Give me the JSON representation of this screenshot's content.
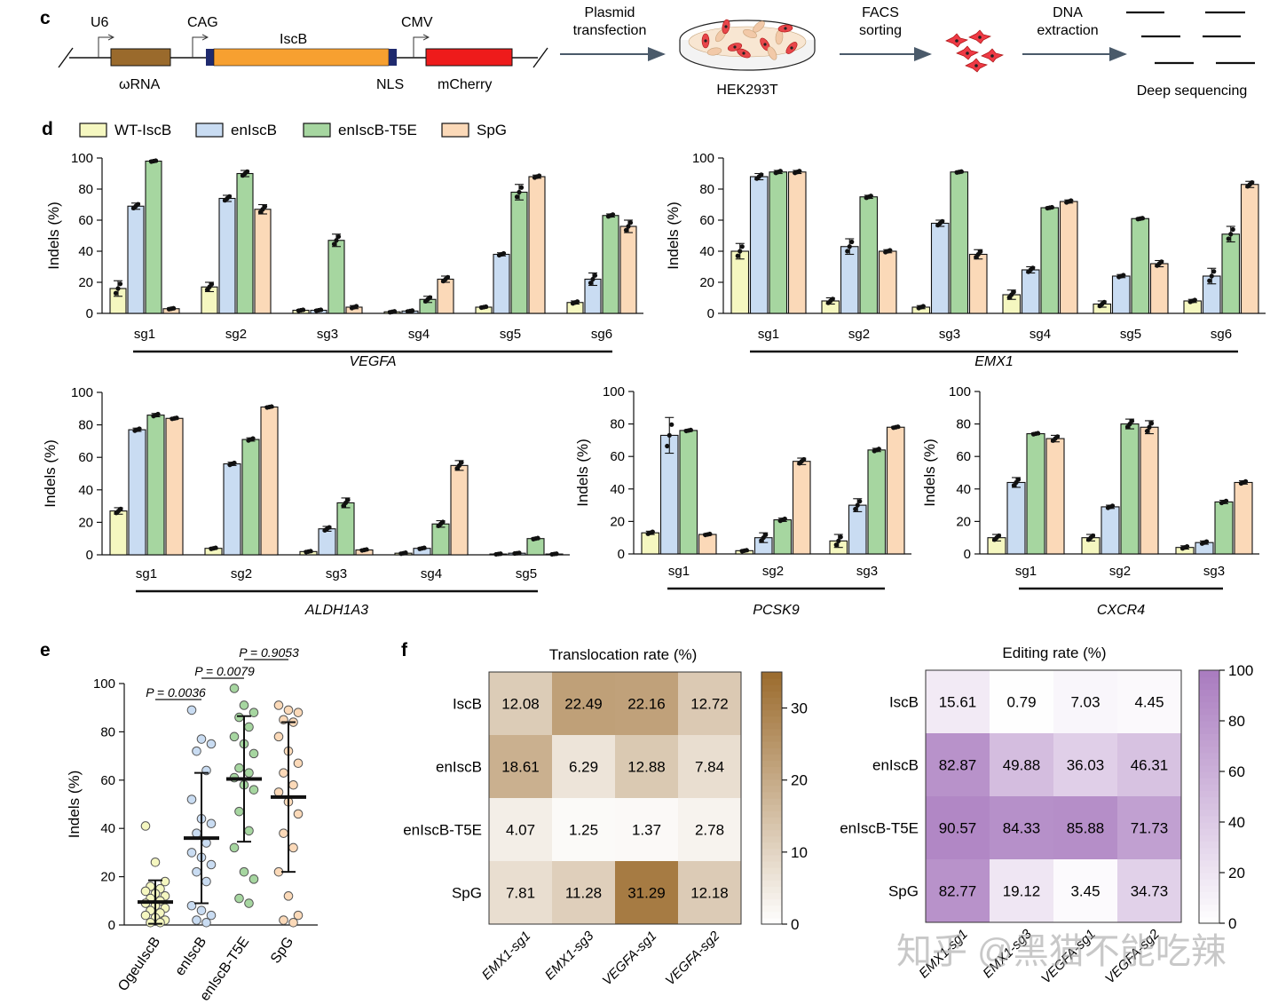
{
  "colors": {
    "wt": "#f5f7c0",
    "en": "#c9dcf2",
    "t5e": "#a6d6a0",
    "spg": "#fbd9b8",
    "bar_stroke": "#111111",
    "plasmid_line": "#111111",
    "omega_box": "#9a6a2c",
    "iscb_box": "#f7a030",
    "nls_box": "#1f2a6e",
    "mcherry_box": "#ee1b1b",
    "arrow": "#4a5a6a",
    "trans_low": "#ffffff",
    "trans_high": "#9b6b2d",
    "edit_low": "#ffffff",
    "edit_high": "#a97bbf"
  },
  "panel_c": {
    "letter": "c",
    "promoters": [
      "U6",
      "CAG",
      "CMV"
    ],
    "labels": {
      "omega": "ωRNA",
      "iscb": "IscB",
      "nls": "NLS",
      "mcherry": "mCherry"
    },
    "steps": [
      {
        "text": [
          "Plasmid",
          "transfection"
        ],
        "icon": "petri-dish-icon",
        "caption": "HEK293T"
      },
      {
        "text": [
          "FACS",
          "sorting"
        ],
        "icon": "sorted-cells-icon",
        "caption": ""
      },
      {
        "text": [
          "DNA",
          "extraction"
        ],
        "icon": "sequencing-reads-icon",
        "caption": "Deep sequencing"
      }
    ]
  },
  "panel_d": {
    "letter": "d",
    "legend": [
      "WT-IscB",
      "enIscB",
      "enIscB-T5E",
      "SpG"
    ]
  },
  "panel_e": {
    "letter": "e"
  },
  "panel_f": {
    "letter": "f"
  },
  "chart_data": [
    {
      "type": "bar",
      "id": "VEGFA",
      "gene": "VEGFA",
      "ylabel": "Indels (%)",
      "ylim": [
        0,
        100
      ],
      "yticks": [
        0,
        20,
        40,
        60,
        80,
        100
      ],
      "categories": [
        "sg1",
        "sg2",
        "sg3",
        "sg4",
        "sg5",
        "sg6"
      ],
      "series": [
        {
          "name": "WT-IscB",
          "values": [
            16,
            17,
            2,
            1,
            4,
            7
          ],
          "err": [
            5,
            3,
            0.5,
            0.5,
            0.5,
            1
          ]
        },
        {
          "name": "enIscB",
          "values": [
            69,
            74,
            2,
            1.5,
            38,
            22
          ],
          "err": [
            2,
            2,
            0.5,
            0.5,
            1,
            4
          ]
        },
        {
          "name": "enIscB-T5E",
          "values": [
            98,
            90,
            47,
            9,
            78,
            63
          ],
          "err": [
            0.5,
            2,
            4,
            2,
            5,
            1
          ]
        },
        {
          "name": "SpG",
          "values": [
            3,
            67,
            4,
            22,
            88,
            56
          ],
          "err": [
            0.5,
            3,
            1,
            2,
            1,
            4
          ]
        }
      ]
    },
    {
      "type": "bar",
      "id": "EMX1",
      "gene": "EMX1",
      "ylabel": "Indels (%)",
      "ylim": [
        0,
        100
      ],
      "yticks": [
        0,
        20,
        40,
        60,
        80,
        100
      ],
      "categories": [
        "sg1",
        "sg2",
        "sg3",
        "sg4",
        "sg5",
        "sg6"
      ],
      "series": [
        {
          "name": "WT-IscB",
          "values": [
            40,
            8,
            4,
            12,
            6,
            8
          ],
          "err": [
            5,
            2,
            1,
            3,
            2,
            1
          ]
        },
        {
          "name": "enIscB",
          "values": [
            88,
            43,
            58,
            28,
            24,
            24
          ],
          "err": [
            2,
            5,
            2,
            2,
            1,
            5
          ]
        },
        {
          "name": "enIscB-T5E",
          "values": [
            91,
            75,
            91,
            68,
            61,
            51
          ],
          "err": [
            1,
            1,
            0.5,
            0.5,
            0.5,
            5
          ]
        },
        {
          "name": "SpG",
          "values": [
            91,
            40,
            38,
            72,
            32,
            83
          ],
          "err": [
            1,
            1,
            3,
            1,
            2,
            2
          ]
        }
      ]
    },
    {
      "type": "bar",
      "id": "ALDH1A3",
      "gene": "ALDH1A3",
      "ylabel": "Indels (%)",
      "ylim": [
        0,
        100
      ],
      "yticks": [
        0,
        20,
        40,
        60,
        80,
        100
      ],
      "categories": [
        "sg1",
        "sg2",
        "sg3",
        "sg4",
        "sg5"
      ],
      "series": [
        {
          "name": "WT-IscB",
          "values": [
            27,
            4,
            2,
            1,
            0.5
          ],
          "err": [
            2,
            0.5,
            0.5,
            0.5,
            0.3
          ]
        },
        {
          "name": "enIscB",
          "values": [
            77,
            56,
            16,
            4,
            1
          ],
          "err": [
            1,
            1,
            1.5,
            0.5,
            0.3
          ]
        },
        {
          "name": "enIscB-T5E",
          "values": [
            86,
            71,
            32,
            19,
            10
          ],
          "err": [
            1,
            1,
            3,
            2,
            0.5
          ]
        },
        {
          "name": "SpG",
          "values": [
            84,
            91,
            3,
            55,
            0.5
          ],
          "err": [
            0.5,
            0.5,
            0.5,
            3,
            0.3
          ]
        }
      ]
    },
    {
      "type": "bar",
      "id": "PCSK9",
      "gene": "PCSK9",
      "ylabel": "Indels (%)",
      "ylim": [
        0,
        100
      ],
      "yticks": [
        0,
        20,
        40,
        60,
        80,
        100
      ],
      "categories": [
        "sg1",
        "sg2",
        "sg3"
      ],
      "series": [
        {
          "name": "WT-IscB",
          "values": [
            13,
            2,
            8
          ],
          "err": [
            1,
            0.5,
            4
          ]
        },
        {
          "name": "enIscB",
          "values": [
            73,
            10,
            30
          ],
          "err": [
            11,
            3,
            4
          ]
        },
        {
          "name": "enIscB-T5E",
          "values": [
            76,
            21,
            64
          ],
          "err": [
            0.5,
            1,
            1
          ]
        },
        {
          "name": "SpG",
          "values": [
            12,
            57,
            78
          ],
          "err": [
            0.5,
            2,
            0.5
          ]
        }
      ]
    },
    {
      "type": "bar",
      "id": "CXCR4",
      "gene": "CXCR4",
      "ylabel": "Indels (%)",
      "ylim": [
        0,
        100
      ],
      "yticks": [
        0,
        20,
        40,
        60,
        80,
        100
      ],
      "categories": [
        "sg1",
        "sg2",
        "sg3"
      ],
      "series": [
        {
          "name": "WT-IscB",
          "values": [
            10,
            10,
            4
          ],
          "err": [
            2,
            2,
            1
          ]
        },
        {
          "name": "enIscB",
          "values": [
            44,
            29,
            7
          ],
          "err": [
            3,
            1,
            1
          ]
        },
        {
          "name": "enIscB-T5E",
          "values": [
            74,
            80,
            32
          ],
          "err": [
            0.5,
            3,
            1
          ]
        },
        {
          "name": "SpG",
          "values": [
            71,
            78,
            44
          ],
          "err": [
            2,
            4,
            1
          ]
        }
      ]
    },
    {
      "type": "scatter",
      "id": "summary",
      "ylabel": "Indels (%)",
      "ylim": [
        0,
        100
      ],
      "yticks": [
        0,
        20,
        40,
        60,
        80,
        100
      ],
      "categories": [
        "OgeuIscB",
        "enIscB",
        "enIscB-T5E",
        "SpG"
      ],
      "means": [
        9.5,
        36,
        60.5,
        53
      ],
      "sd": [
        9,
        27,
        26,
        31
      ],
      "points": [
        [
          41,
          26,
          18,
          16,
          15,
          14,
          13,
          12,
          11,
          10,
          9,
          8,
          7,
          6,
          5,
          4,
          3,
          2,
          1,
          1
        ],
        [
          89,
          77,
          75,
          72,
          64,
          52,
          44,
          42,
          38,
          34,
          30,
          28,
          25,
          22,
          18,
          8,
          6,
          4,
          2,
          1
        ],
        [
          98,
          91,
          88,
          86,
          82,
          78,
          75,
          71,
          65,
          63,
          61,
          58,
          56,
          47,
          39,
          32,
          22,
          19,
          11,
          9
        ],
        [
          91,
          89,
          88,
          85,
          84,
          78,
          72,
          67,
          63,
          58,
          55,
          51,
          46,
          38,
          32,
          22,
          12,
          4,
          2,
          1
        ]
      ],
      "comparisons": [
        {
          "label": "P = 0.0036",
          "from": 0,
          "to": 1
        },
        {
          "label": "P = 0.0079",
          "from": 1,
          "to": 2
        },
        {
          "label": "P = 0.9053",
          "from": 2,
          "to": 3
        }
      ]
    },
    {
      "type": "heatmap",
      "id": "translocation",
      "title": "Translocation rate (%)",
      "rows": [
        "IscB",
        "enIscB",
        "enIscB-T5E",
        "SpG"
      ],
      "cols": [
        "EMX1-sg1",
        "EMX1-sg3",
        "VEGFA-sg1",
        "VEGFA-sg2"
      ],
      "values": [
        [
          12.08,
          22.49,
          22.16,
          12.72
        ],
        [
          18.61,
          6.29,
          12.88,
          7.84
        ],
        [
          4.07,
          1.25,
          1.37,
          2.78
        ],
        [
          7.81,
          11.28,
          31.29,
          12.18
        ]
      ],
      "value_labels": [
        [
          "12.08",
          "22.49",
          "22.16",
          "12.72"
        ],
        [
          "18.61",
          "6.29",
          "12.88",
          "7.84"
        ],
        [
          "4.07",
          "1.25",
          "1.37",
          "2.78"
        ],
        [
          "7.81",
          "11.28",
          "31.29",
          "12.18"
        ]
      ],
      "color_range": [
        0,
        35
      ],
      "colorbar_ticks": [
        0,
        10,
        20,
        30
      ]
    },
    {
      "type": "heatmap",
      "id": "editing",
      "title": "Editing rate (%)",
      "rows": [
        "IscB",
        "enIscB",
        "enIscB-T5E",
        "SpG"
      ],
      "cols": [
        "EMX1-sg1",
        "EMX1-sg3",
        "VEGFA-sg1",
        "VEGFA-sg2"
      ],
      "values": [
        [
          15.61,
          0.79,
          7.03,
          4.45
        ],
        [
          82.87,
          49.88,
          36.03,
          46.31
        ],
        [
          90.57,
          84.33,
          85.88,
          71.73
        ],
        [
          82.77,
          19.12,
          3.45,
          34.73
        ]
      ],
      "value_labels": [
        [
          "15.61",
          "0.79",
          "7.03",
          "4.45"
        ],
        [
          "82.87",
          "49.88",
          "36.03",
          "46.31"
        ],
        [
          "90.57",
          "84.33",
          "85.88",
          "71.73"
        ],
        [
          "82.77",
          "19.12",
          "3.45",
          "34.73"
        ]
      ],
      "color_range": [
        0,
        100
      ],
      "colorbar_ticks": [
        0,
        20,
        40,
        60,
        80,
        100
      ]
    }
  ],
  "watermark": "知乎 @黑猫不能吃辣"
}
